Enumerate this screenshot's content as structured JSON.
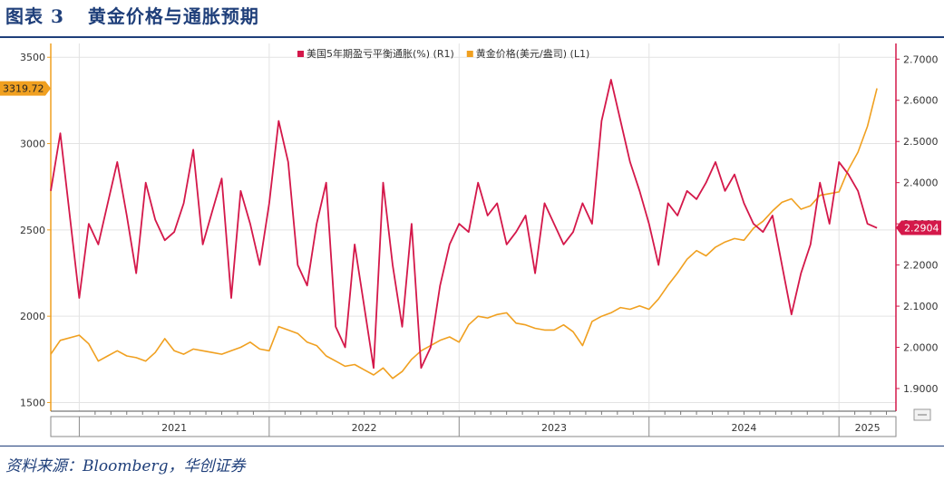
{
  "figure": {
    "label": "图表",
    "number": "3",
    "title": "黄金价格与通胀预期",
    "source": "资料来源：Bloomberg，华创证券"
  },
  "colors": {
    "inflation": "#d4184a",
    "gold": "#f0a020",
    "axis_text": "#333333",
    "grid": "#e3e3e3",
    "bg": "#ffffff"
  },
  "chart_data": {
    "type": "line",
    "title": "黄金价格与通胀预期",
    "x_range": [
      2020.85,
      2025.3
    ],
    "x_ticks": [
      {
        "label": "2021",
        "start": 2021.0,
        "end": 2022.0
      },
      {
        "label": "2022",
        "start": 2022.0,
        "end": 2023.0
      },
      {
        "label": "2023",
        "start": 2023.0,
        "end": 2024.0
      },
      {
        "label": "2024",
        "start": 2024.0,
        "end": 2025.0
      },
      {
        "label": "2025",
        "start": 2025.0,
        "end": 2025.3
      }
    ],
    "left_axis": {
      "range": [
        1450,
        3580
      ],
      "ticks": [
        "1500",
        "2000",
        "2500",
        "3000",
        "3500"
      ]
    },
    "right_axis": {
      "range": [
        1.845,
        2.738
      ],
      "ticks": [
        "1.9000",
        "2.0000",
        "2.1000",
        "2.2000",
        "2.3000",
        "2.4000",
        "2.5000",
        "2.6000",
        "2.7000"
      ]
    },
    "last_value_labels": {
      "gold": "3319.72",
      "inflation": "2.2904"
    },
    "series": [
      {
        "name": "美国5年期盈亏平衡通胀(%) (R1)",
        "axis": "right",
        "x": [
          2020.85,
          2020.9,
          2021.0,
          2021.05,
          2021.1,
          2021.15,
          2021.2,
          2021.25,
          2021.3,
          2021.35,
          2021.4,
          2021.45,
          2021.5,
          2021.55,
          2021.6,
          2021.65,
          2021.7,
          2021.75,
          2021.8,
          2021.85,
          2021.9,
          2021.95,
          2022.0,
          2022.05,
          2022.1,
          2022.15,
          2022.2,
          2022.25,
          2022.3,
          2022.35,
          2022.4,
          2022.45,
          2022.5,
          2022.55,
          2022.6,
          2022.65,
          2022.7,
          2022.75,
          2022.8,
          2022.85,
          2022.9,
          2022.95,
          2023.0,
          2023.05,
          2023.1,
          2023.15,
          2023.2,
          2023.25,
          2023.3,
          2023.35,
          2023.4,
          2023.45,
          2023.5,
          2023.55,
          2023.6,
          2023.65,
          2023.7,
          2023.75,
          2023.8,
          2023.85,
          2023.9,
          2023.95,
          2024.0,
          2024.05,
          2024.1,
          2024.15,
          2024.2,
          2024.25,
          2024.3,
          2024.35,
          2024.4,
          2024.45,
          2024.5,
          2024.55,
          2024.6,
          2024.65,
          2024.7,
          2024.75,
          2024.8,
          2024.85,
          2024.9,
          2024.95,
          2025.0,
          2025.05,
          2025.1,
          2025.15,
          2025.2
        ],
        "values": [
          2.38,
          2.52,
          2.12,
          2.3,
          2.25,
          2.35,
          2.45,
          2.32,
          2.18,
          2.4,
          2.31,
          2.26,
          2.28,
          2.35,
          2.48,
          2.25,
          2.33,
          2.41,
          2.12,
          2.38,
          2.3,
          2.2,
          2.35,
          2.55,
          2.45,
          2.2,
          2.15,
          2.3,
          2.4,
          2.05,
          2.0,
          2.25,
          2.1,
          1.95,
          2.4,
          2.2,
          2.05,
          2.3,
          1.95,
          2.0,
          2.15,
          2.25,
          2.3,
          2.28,
          2.4,
          2.32,
          2.35,
          2.25,
          2.28,
          2.32,
          2.18,
          2.35,
          2.3,
          2.25,
          2.28,
          2.35,
          2.3,
          2.55,
          2.65,
          2.55,
          2.45,
          2.38,
          2.3,
          2.2,
          2.35,
          2.32,
          2.38,
          2.36,
          2.4,
          2.45,
          2.38,
          2.42,
          2.35,
          2.3,
          2.28,
          2.32,
          2.2,
          2.08,
          2.18,
          2.25,
          2.4,
          2.3,
          2.45,
          2.42,
          2.38,
          2.3,
          2.29
        ]
      },
      {
        "name": "黄金价格(美元/盎司) (L1)",
        "axis": "left",
        "x": [
          2020.85,
          2020.9,
          2021.0,
          2021.05,
          2021.1,
          2021.15,
          2021.2,
          2021.25,
          2021.3,
          2021.35,
          2021.4,
          2021.45,
          2021.5,
          2021.55,
          2021.6,
          2021.65,
          2021.7,
          2021.75,
          2021.8,
          2021.85,
          2021.9,
          2021.95,
          2022.0,
          2022.05,
          2022.1,
          2022.15,
          2022.2,
          2022.25,
          2022.3,
          2022.35,
          2022.4,
          2022.45,
          2022.5,
          2022.55,
          2022.6,
          2022.65,
          2022.7,
          2022.75,
          2022.8,
          2022.85,
          2022.9,
          2022.95,
          2023.0,
          2023.05,
          2023.1,
          2023.15,
          2023.2,
          2023.25,
          2023.3,
          2023.35,
          2023.4,
          2023.45,
          2023.5,
          2023.55,
          2023.6,
          2023.65,
          2023.7,
          2023.75,
          2023.8,
          2023.85,
          2023.9,
          2023.95,
          2024.0,
          2024.05,
          2024.1,
          2024.15,
          2024.2,
          2024.25,
          2024.3,
          2024.35,
          2024.4,
          2024.45,
          2024.5,
          2024.55,
          2024.6,
          2024.65,
          2024.7,
          2024.75,
          2024.8,
          2024.85,
          2024.9,
          2024.95,
          2025.0,
          2025.05,
          2025.1,
          2025.15,
          2025.2
        ],
        "values": [
          1780,
          1860,
          1890,
          1840,
          1740,
          1770,
          1800,
          1770,
          1760,
          1740,
          1790,
          1870,
          1800,
          1780,
          1810,
          1800,
          1790,
          1780,
          1800,
          1820,
          1850,
          1810,
          1800,
          1940,
          1920,
          1900,
          1850,
          1830,
          1770,
          1740,
          1710,
          1720,
          1690,
          1660,
          1700,
          1640,
          1680,
          1750,
          1800,
          1830,
          1860,
          1880,
          1850,
          1950,
          2000,
          1990,
          2010,
          2020,
          1960,
          1950,
          1930,
          1920,
          1920,
          1950,
          1910,
          1830,
          1970,
          2000,
          2020,
          2050,
          2040,
          2060,
          2040,
          2100,
          2180,
          2250,
          2330,
          2380,
          2350,
          2400,
          2430,
          2450,
          2440,
          2510,
          2550,
          2610,
          2660,
          2680,
          2620,
          2640,
          2700,
          2710,
          2720,
          2850,
          2950,
          3100,
          3320
        ]
      }
    ]
  }
}
